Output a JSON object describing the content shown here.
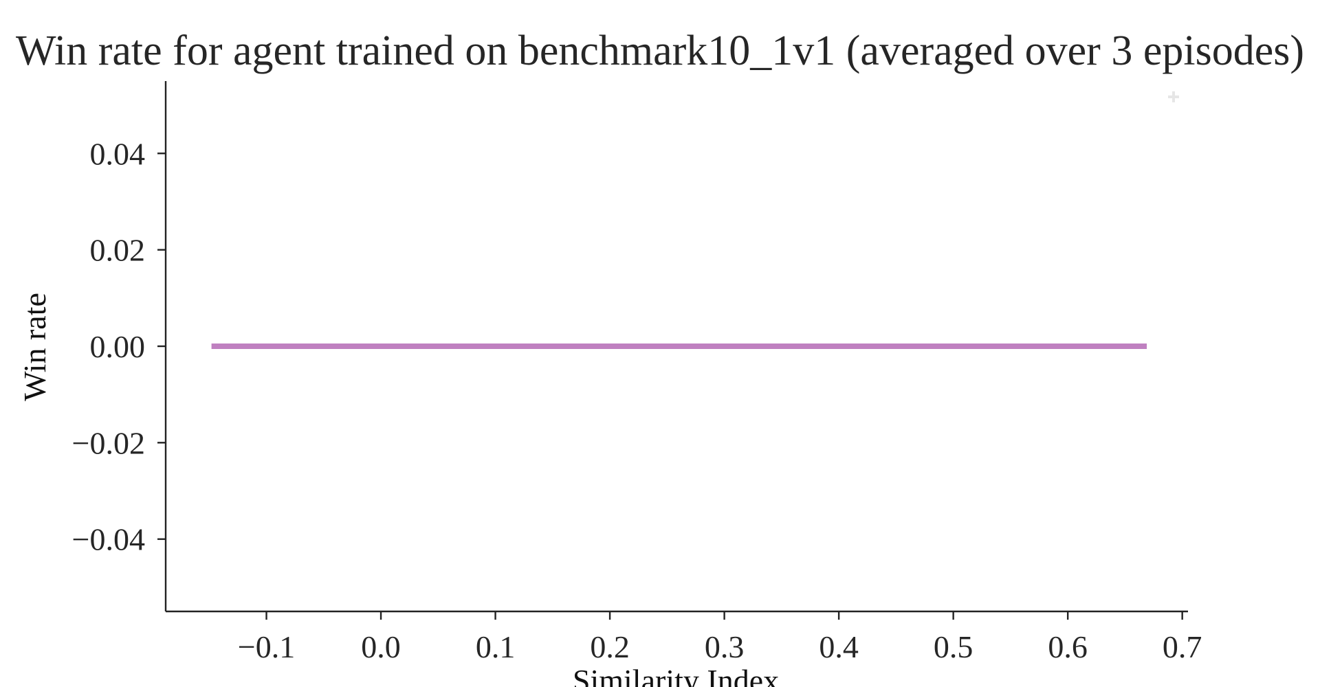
{
  "chart_data": {
    "type": "line",
    "title": "Win rate for agent trained on benchmark10_1v1 (averaged over 3 episodes)",
    "xlabel": "Similarity Index",
    "ylabel": "Win rate",
    "xlim": [
      -0.188,
      0.705
    ],
    "ylim": [
      -0.055,
      0.055
    ],
    "xticks": [
      -0.1,
      0.0,
      0.1,
      0.2,
      0.3,
      0.4,
      0.5,
      0.6,
      0.7
    ],
    "xtick_labels": [
      "−0.1",
      "0.0",
      "0.1",
      "0.2",
      "0.3",
      "0.4",
      "0.5",
      "0.6",
      "0.7"
    ],
    "yticks": [
      0.04,
      0.02,
      0.0,
      -0.02,
      -0.04
    ],
    "ytick_labels": [
      "0.04",
      "0.02",
      "0.00",
      "−0.02",
      "−0.04"
    ],
    "grid": false,
    "legend": "none",
    "series": [
      {
        "color": "#bf80c0",
        "x": [
          -0.148,
          0.669
        ],
        "y": [
          0.0,
          0.0
        ]
      }
    ],
    "marker_color": "#e6e6e6"
  }
}
